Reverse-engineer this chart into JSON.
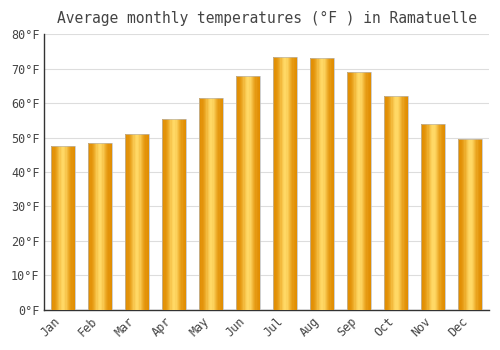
{
  "title": "Average monthly temperatures (°F ) in Ramatuelle",
  "months": [
    "Jan",
    "Feb",
    "Mar",
    "Apr",
    "May",
    "Jun",
    "Jul",
    "Aug",
    "Sep",
    "Oct",
    "Nov",
    "Dec"
  ],
  "values": [
    47.5,
    48.5,
    51.0,
    55.5,
    61.5,
    68.0,
    73.5,
    73.0,
    69.0,
    62.0,
    54.0,
    49.5
  ],
  "bar_color_center": "#FFD966",
  "bar_color_edge": "#F5A800",
  "bar_color_dark": "#E08C00",
  "background_color": "#FFFFFF",
  "plot_bg_color": "#FFFFFF",
  "grid_color": "#DDDDDD",
  "text_color": "#444444",
  "spine_color": "#333333",
  "ylim": [
    0,
    80
  ],
  "ytick_step": 10,
  "title_fontsize": 10.5,
  "tick_fontsize": 8.5,
  "bar_width": 0.65
}
